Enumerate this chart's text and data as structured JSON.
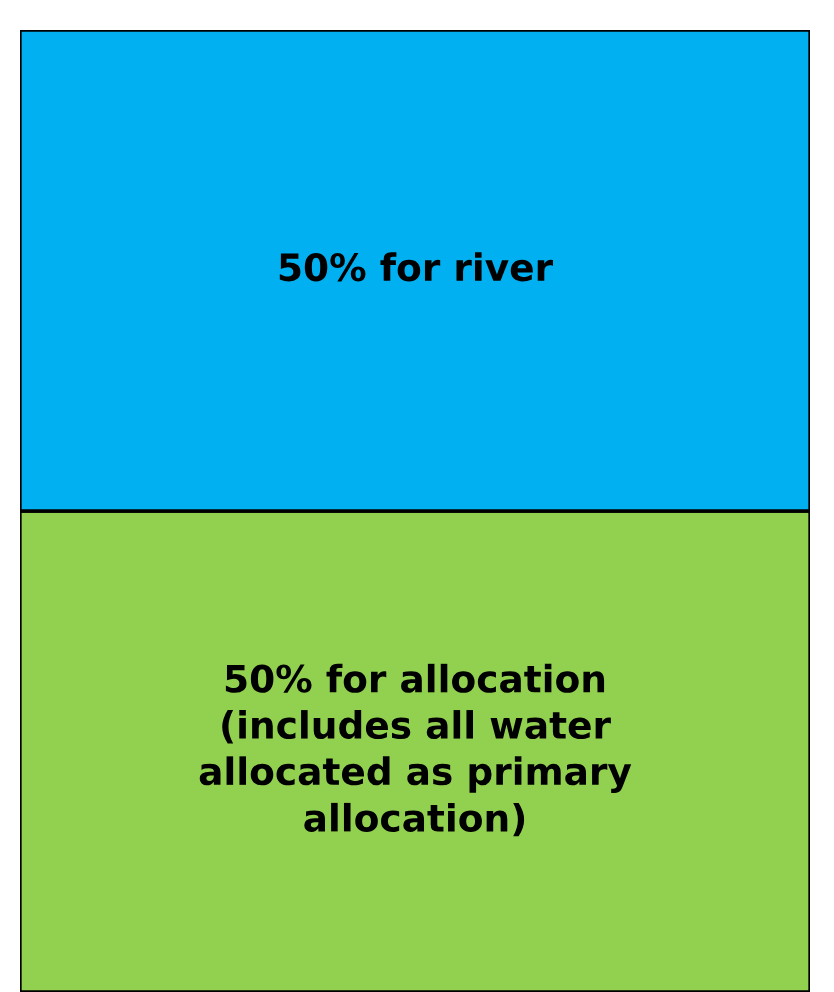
{
  "chart_data": {
    "type": "bar",
    "stacked": true,
    "categories": [
      null
    ],
    "series": [
      {
        "color": "#92d050",
        "values": [
          50
        ],
        "value_labels": [
          "50% for allocation\n(includes all water\nallocated as primary\nallocation)"
        ]
      },
      {
        "color": "#00b0f0",
        "values": [
          50
        ],
        "value_labels": [
          "50% for river"
        ]
      }
    ]
  }
}
